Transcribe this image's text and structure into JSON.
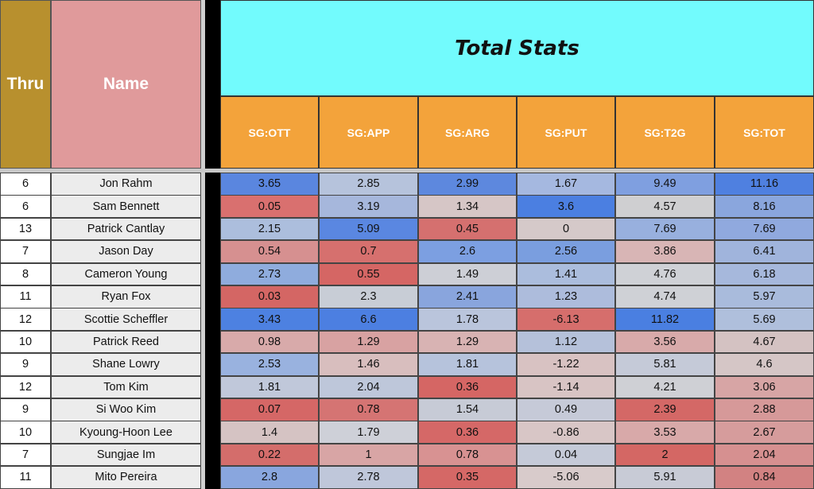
{
  "header": {
    "thru_label": "Thru",
    "name_label": "Name",
    "total_label": "Total Stats",
    "columns": [
      "SG:OTT",
      "SG:APP",
      "SG:ARG",
      "SG:PUT",
      "SG:T2G",
      "SG:TOT"
    ]
  },
  "colors": {
    "thru_header": "#b8902e",
    "name_header": "#e09a9b",
    "total_header": "#72fbfd",
    "stat_header": "#f3a33b"
  },
  "rows": [
    {
      "thru": "6",
      "name": "Jon Rahm",
      "stats": [
        "3.65",
        "2.85",
        "2.99",
        "1.67",
        "9.49",
        "11.16"
      ]
    },
    {
      "thru": "6",
      "name": "Sam Bennett",
      "stats": [
        "0.05",
        "3.19",
        "1.34",
        "3.6",
        "4.57",
        "8.16"
      ]
    },
    {
      "thru": "13",
      "name": "Patrick Cantlay",
      "stats": [
        "2.15",
        "5.09",
        "0.45",
        "0",
        "7.69",
        "7.69"
      ]
    },
    {
      "thru": "7",
      "name": "Jason Day",
      "stats": [
        "0.54",
        "0.7",
        "2.6",
        "2.56",
        "3.86",
        "6.41"
      ]
    },
    {
      "thru": "8",
      "name": "Cameron Young",
      "stats": [
        "2.73",
        "0.55",
        "1.49",
        "1.41",
        "4.76",
        "6.18"
      ]
    },
    {
      "thru": "11",
      "name": "Ryan Fox",
      "stats": [
        "0.03",
        "2.3",
        "2.41",
        "1.23",
        "4.74",
        "5.97"
      ]
    },
    {
      "thru": "12",
      "name": "Scottie Scheffler",
      "stats": [
        "3.43",
        "6.6",
        "1.78",
        "-6.13",
        "11.82",
        "5.69"
      ]
    },
    {
      "thru": "10",
      "name": "Patrick Reed",
      "stats": [
        "0.98",
        "1.29",
        "1.29",
        "1.12",
        "3.56",
        "4.67"
      ]
    },
    {
      "thru": "9",
      "name": "Shane Lowry",
      "stats": [
        "2.53",
        "1.46",
        "1.81",
        "-1.22",
        "5.81",
        "4.6"
      ]
    },
    {
      "thru": "12",
      "name": "Tom Kim",
      "stats": [
        "1.81",
        "2.04",
        "0.36",
        "-1.14",
        "4.21",
        "3.06"
      ]
    },
    {
      "thru": "9",
      "name": "Si Woo Kim",
      "stats": [
        "0.07",
        "0.78",
        "1.54",
        "0.49",
        "2.39",
        "2.88"
      ]
    },
    {
      "thru": "10",
      "name": "Kyoung-Hoon Lee",
      "stats": [
        "1.4",
        "1.79",
        "0.36",
        "-0.86",
        "3.53",
        "2.67"
      ]
    },
    {
      "thru": "7",
      "name": "Sungjae Im",
      "stats": [
        "0.22",
        "1",
        "0.78",
        "0.04",
        "2",
        "2.04"
      ]
    },
    {
      "thru": "11",
      "name": "Mito Pereira",
      "stats": [
        "2.8",
        "2.78",
        "0.35",
        "-5.06",
        "5.91",
        "0.84"
      ]
    }
  ],
  "cell_colors": [
    [
      "#5a86df",
      "#b6c3dc",
      "#5d88de",
      "#a5b8e0",
      "#7f9fe0",
      "#4f80e0"
    ],
    [
      "#d9706f",
      "#a6b7dc",
      "#d6c6c6",
      "#4b7fe1",
      "#cfcfd1",
      "#8aa6dd"
    ],
    [
      "#acbedd",
      "#5a87e1",
      "#d5706f",
      "#d5c9c9",
      "#98b0de",
      "#90a9de"
    ],
    [
      "#d69090",
      "#d6706e",
      "#7c9fe1",
      "#7a9edf",
      "#d8b5b5",
      "#a0b4dc"
    ],
    [
      "#8facdd",
      "#d56664",
      "#cdcfd6",
      "#abbddd",
      "#cfd1d6",
      "#a6b8dc"
    ],
    [
      "#d46664",
      "#c8cdd6",
      "#89a5dd",
      "#adbcdc",
      "#cfd1d6",
      "#a9bbdc"
    ],
    [
      "#4d81e1",
      "#4c7fe1",
      "#bac5dc",
      "#d66e6c",
      "#4a7fe1",
      "#afbfdc"
    ],
    [
      "#d8aaaa",
      "#d8a2a2",
      "#d8b3b3",
      "#b5c1da",
      "#d8aaaa",
      "#d4c2c2"
    ],
    [
      "#99b2df",
      "#d8bebe",
      "#b6c3dc",
      "#d8c2c2",
      "#c5cad8",
      "#d5c6c6"
    ],
    [
      "#c0c8da",
      "#bec7da",
      "#d56664",
      "#d8c4c4",
      "#cfd0d5",
      "#d7a5a5"
    ],
    [
      "#d56766",
      "#d57473",
      "#c7cbd6",
      "#c6cad8",
      "#d46866",
      "#d69999"
    ],
    [
      "#d5c3c3",
      "#ced0d8",
      "#d56867",
      "#d8c6c6",
      "#d8a9a9",
      "#d69c9c"
    ],
    [
      "#d46d6b",
      "#d8a5a5",
      "#d89292",
      "#c5cad8",
      "#d46764",
      "#d69090"
    ],
    [
      "#89a6de",
      "#bfc7da",
      "#d56866",
      "#d8cbcb",
      "#c8cbd6",
      "#d28282"
    ]
  ]
}
